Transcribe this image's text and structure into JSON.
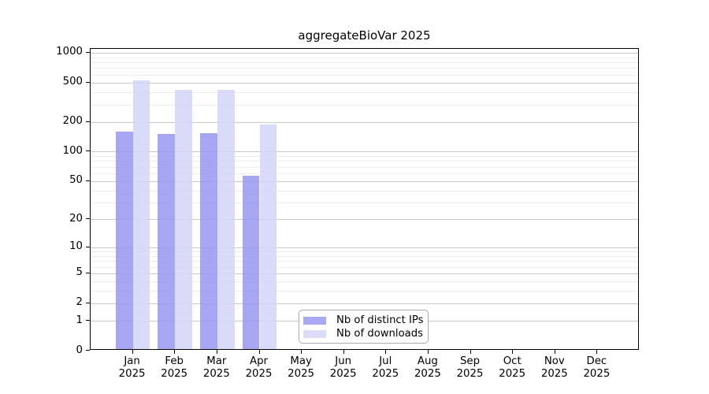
{
  "chart_data": {
    "type": "bar",
    "title": "aggregateBioVar 2025",
    "categories": [
      "Jan 2025",
      "Feb 2025",
      "Mar 2025",
      "Apr 2025",
      "May 2025",
      "Jun 2025",
      "Jul 2025",
      "Aug 2025",
      "Sep 2025",
      "Oct 2025",
      "Nov 2025",
      "Dec 2025"
    ],
    "series": [
      {
        "name": "Nb of distinct IPs",
        "color": "#a9a9f3",
        "bar_rgba": "rgba(151,151,241,0.85)",
        "values": [
          160,
          150,
          154,
          57,
          null,
          null,
          null,
          null,
          null,
          null,
          null,
          null
        ]
      },
      {
        "name": "Nb of downloads",
        "color": "#dcdcf9",
        "bar_rgba": "rgba(213,213,248,0.88)",
        "values": [
          525,
          420,
          420,
          187,
          null,
          null,
          null,
          null,
          null,
          null,
          null,
          null
        ]
      }
    ],
    "yscale": "symlog-log1p",
    "ylim": [
      0,
      1090
    ],
    "y_major_ticks": [
      0,
      1,
      2,
      5,
      10,
      20,
      50,
      100,
      200,
      500,
      1000
    ],
    "y_minor_gridlines": [
      3,
      4,
      6,
      7,
      8,
      9,
      30,
      40,
      60,
      70,
      80,
      90,
      300,
      400,
      600,
      700,
      800,
      900
    ],
    "grid": "horizontal",
    "legend_position": "bottom-center-inside",
    "xlabel": "",
    "ylabel": ""
  },
  "colors": {
    "axis": "#000000",
    "major_grid": "#c9c9c9",
    "minor_grid": "#ececec",
    "background": "#ffffff",
    "legend_border": "#ababab"
  }
}
